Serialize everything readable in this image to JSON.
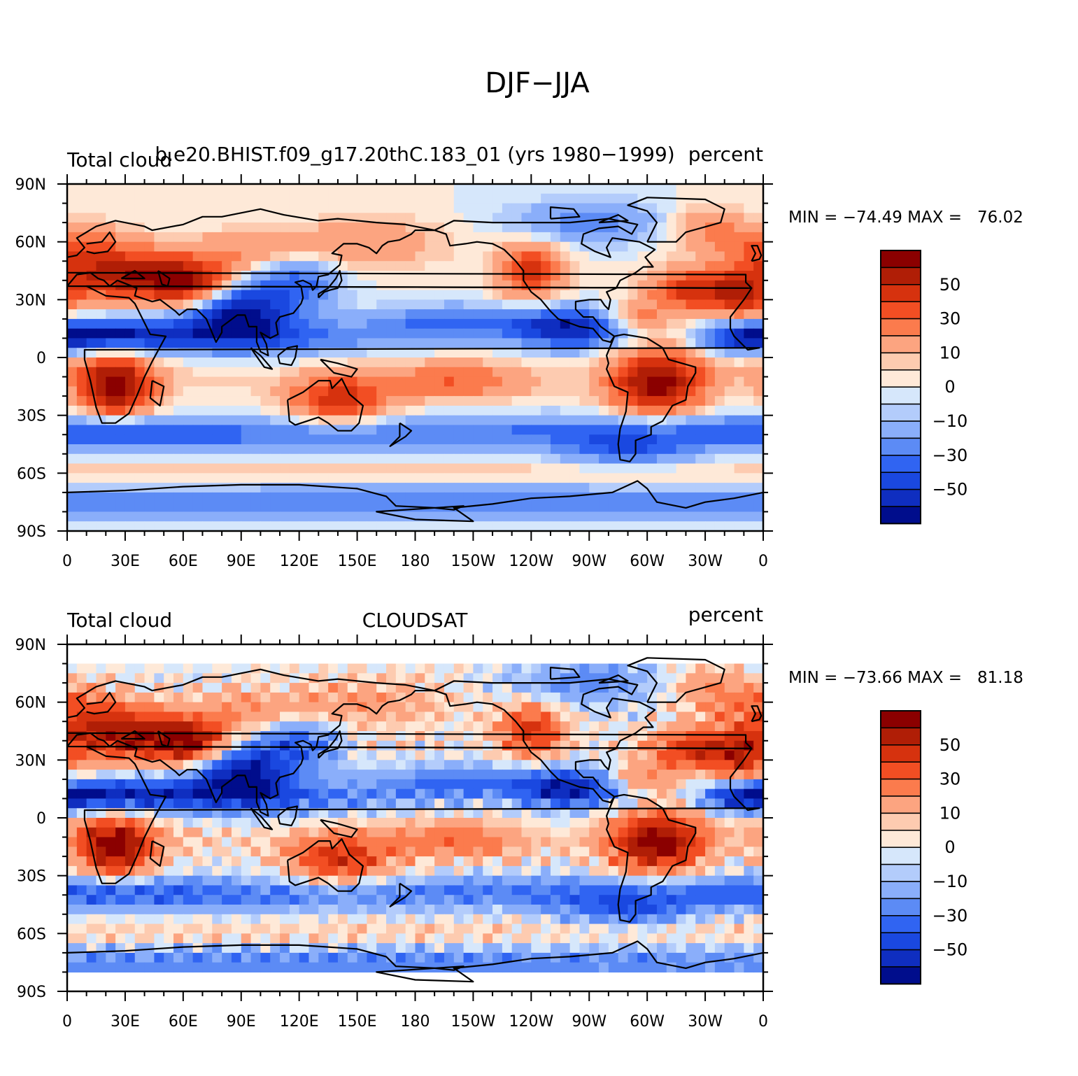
{
  "figure": {
    "title": "DJF−JJA"
  },
  "panels": [
    {
      "left_label": "Total cloud",
      "center_label": "b.e20.BHIST.f09_g17.20thC.183_01 (yrs 1980−1999)",
      "right_label": "percent",
      "stats": "MIN = −74.49 MAX =   76.02"
    },
    {
      "left_label": "Total cloud",
      "center_label": "CLOUDSAT",
      "right_label": "percent",
      "stats": "MIN = −73.66 MAX =   81.18"
    }
  ],
  "axes": {
    "lat_ticks": [
      "90N",
      "60N",
      "30N",
      "0",
      "30S",
      "60S",
      "90S"
    ],
    "lon_ticks": [
      "0",
      "30E",
      "60E",
      "90E",
      "120E",
      "150E",
      "180",
      "150W",
      "120W",
      "90W",
      "60W",
      "30W",
      "0"
    ]
  },
  "colorbar": {
    "labels": [
      "50",
      "30",
      "10",
      "0",
      "−10",
      "−30",
      "−50"
    ],
    "colors": [
      "#8b0000",
      "#b01e06",
      "#d6320e",
      "#f24e23",
      "#fb7b4d",
      "#fca480",
      "#fdcbb0",
      "#fee9d8",
      "#d6e7fb",
      "#b3ccfb",
      "#8aaefa",
      "#5c8bf5",
      "#3064f2",
      "#1a48e0",
      "#0f2ec0",
      "#000d8c"
    ]
  }
}
